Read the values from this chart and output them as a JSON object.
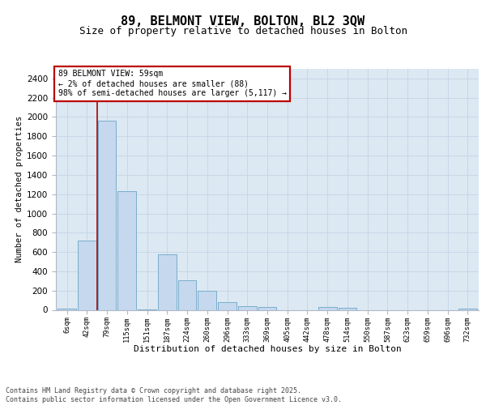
{
  "title1": "89, BELMONT VIEW, BOLTON, BL2 3QW",
  "title2": "Size of property relative to detached houses in Bolton",
  "xlabel": "Distribution of detached houses by size in Bolton",
  "ylabel": "Number of detached properties",
  "categories": [
    "6sqm",
    "42sqm",
    "79sqm",
    "115sqm",
    "151sqm",
    "187sqm",
    "224sqm",
    "260sqm",
    "296sqm",
    "333sqm",
    "369sqm",
    "405sqm",
    "442sqm",
    "478sqm",
    "514sqm",
    "550sqm",
    "587sqm",
    "623sqm",
    "659sqm",
    "696sqm",
    "732sqm"
  ],
  "bar_values": [
    15,
    720,
    1960,
    1230,
    2,
    575,
    305,
    200,
    80,
    40,
    30,
    0,
    0,
    30,
    20,
    0,
    0,
    0,
    0,
    0,
    15
  ],
  "bar_color": "#c5d8ee",
  "bar_edge_color": "#7aaecc",
  "vline_color": "#aa0000",
  "vline_x": 1.5,
  "annotation_text": "89 BELMONT VIEW: 59sqm\n← 2% of detached houses are smaller (88)\n98% of semi-detached houses are larger (5,117) →",
  "annotation_box_edgecolor": "#bb0000",
  "ylim": [
    0,
    2500
  ],
  "yticks": [
    0,
    200,
    400,
    600,
    800,
    1000,
    1200,
    1400,
    1600,
    1800,
    2000,
    2200,
    2400
  ],
  "grid_color": "#c5d5e5",
  "bg_color": "#dce8f2",
  "footer": "Contains HM Land Registry data © Crown copyright and database right 2025.\nContains public sector information licensed under the Open Government Licence v3.0.",
  "title_fontsize": 11,
  "subtitle_fontsize": 9,
  "bar_width": 0.92
}
